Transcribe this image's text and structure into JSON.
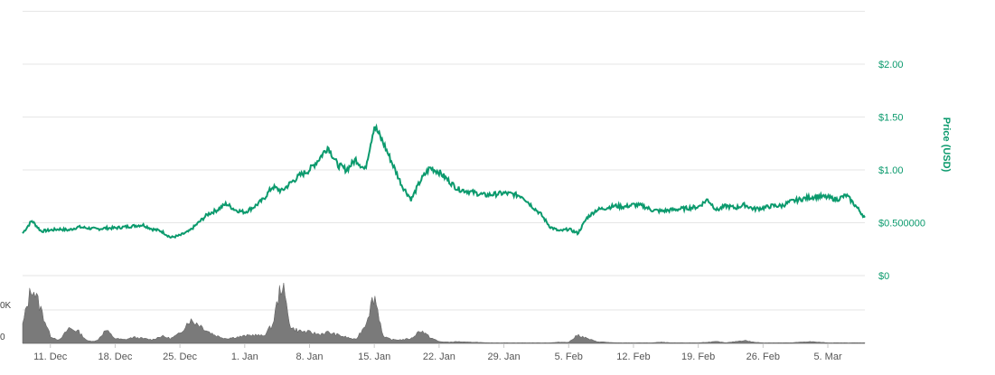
{
  "chart_data": {
    "type": "line",
    "title": "",
    "y_axis": {
      "label": "Price (USD)",
      "range": [
        0,
        2.5
      ],
      "ticks": [
        0,
        0.5,
        1.0,
        1.5,
        2.0
      ],
      "tick_labels": [
        "$0",
        "$0.500000",
        "$1.00",
        "$1.50",
        "$2.00"
      ],
      "position": "right"
    },
    "x_axis": {
      "range": [
        "2017-12-08",
        "2018-03-09"
      ],
      "ticks": [
        "2017-12-11",
        "2017-12-18",
        "2017-12-25",
        "2018-01-01",
        "2018-01-08",
        "2018-01-15",
        "2018-01-22",
        "2018-01-29",
        "2018-02-05",
        "2018-02-12",
        "2018-02-19",
        "2018-02-26",
        "2018-03-05"
      ],
      "tick_labels": [
        "11. Dec",
        "18. Dec",
        "25. Dec",
        "1. Jan",
        "8. Jan",
        "15. Jan",
        "22. Jan",
        "29. Jan",
        "5. Feb",
        "12. Feb",
        "19. Feb",
        "26. Feb",
        "5. Mar"
      ]
    },
    "volume_axis": {
      "tick_labels": [
        "0",
        "0K"
      ]
    },
    "grid": true,
    "series": [
      {
        "kind": "price",
        "color": "#0b9a6d",
        "points": [
          [
            "2017-12-08",
            0.4
          ],
          [
            "2017-12-09",
            0.52
          ],
          [
            "2017-12-10",
            0.42
          ],
          [
            "2017-12-11",
            0.43
          ],
          [
            "2017-12-12",
            0.44
          ],
          [
            "2017-12-13",
            0.43
          ],
          [
            "2017-12-14",
            0.46
          ],
          [
            "2017-12-15",
            0.45
          ],
          [
            "2017-12-16",
            0.44
          ],
          [
            "2017-12-17",
            0.45
          ],
          [
            "2017-12-18",
            0.45
          ],
          [
            "2017-12-19",
            0.46
          ],
          [
            "2017-12-20",
            0.47
          ],
          [
            "2017-12-21",
            0.48
          ],
          [
            "2017-12-22",
            0.44
          ],
          [
            "2017-12-23",
            0.42
          ],
          [
            "2017-12-24",
            0.36
          ],
          [
            "2017-12-25",
            0.38
          ],
          [
            "2017-12-26",
            0.42
          ],
          [
            "2017-12-27",
            0.5
          ],
          [
            "2017-12-28",
            0.58
          ],
          [
            "2017-12-29",
            0.62
          ],
          [
            "2017-12-30",
            0.68
          ],
          [
            "2017-12-31",
            0.62
          ],
          [
            "2018-01-01",
            0.6
          ],
          [
            "2018-01-02",
            0.65
          ],
          [
            "2018-01-03",
            0.72
          ],
          [
            "2018-01-04",
            0.84
          ],
          [
            "2018-01-05",
            0.8
          ],
          [
            "2018-01-06",
            0.88
          ],
          [
            "2018-01-07",
            0.95
          ],
          [
            "2018-01-08",
            1.0
          ],
          [
            "2018-01-09",
            1.1
          ],
          [
            "2018-01-10",
            1.22
          ],
          [
            "2018-01-11",
            1.05
          ],
          [
            "2018-01-12",
            1.0
          ],
          [
            "2018-01-13",
            1.1
          ],
          [
            "2018-01-14",
            1.0
          ],
          [
            "2018-01-15",
            1.42
          ],
          [
            "2018-01-16",
            1.25
          ],
          [
            "2018-01-17",
            1.05
          ],
          [
            "2018-01-18",
            0.85
          ],
          [
            "2018-01-19",
            0.72
          ],
          [
            "2018-01-20",
            0.9
          ],
          [
            "2018-01-21",
            1.02
          ],
          [
            "2018-01-22",
            0.98
          ],
          [
            "2018-01-23",
            0.9
          ],
          [
            "2018-01-24",
            0.82
          ],
          [
            "2018-01-25",
            0.8
          ],
          [
            "2018-01-26",
            0.78
          ],
          [
            "2018-01-27",
            0.76
          ],
          [
            "2018-01-28",
            0.77
          ],
          [
            "2018-01-29",
            0.78
          ],
          [
            "2018-01-30",
            0.77
          ],
          [
            "2018-01-31",
            0.75
          ],
          [
            "2018-02-01",
            0.66
          ],
          [
            "2018-02-02",
            0.58
          ],
          [
            "2018-02-03",
            0.46
          ],
          [
            "2018-02-04",
            0.42
          ],
          [
            "2018-02-05",
            0.44
          ],
          [
            "2018-02-06",
            0.4
          ],
          [
            "2018-02-07",
            0.55
          ],
          [
            "2018-02-08",
            0.62
          ],
          [
            "2018-02-09",
            0.64
          ],
          [
            "2018-02-10",
            0.66
          ],
          [
            "2018-02-11",
            0.65
          ],
          [
            "2018-02-12",
            0.67
          ],
          [
            "2018-02-13",
            0.66
          ],
          [
            "2018-02-14",
            0.62
          ],
          [
            "2018-02-15",
            0.61
          ],
          [
            "2018-02-16",
            0.62
          ],
          [
            "2018-02-17",
            0.63
          ],
          [
            "2018-02-18",
            0.64
          ],
          [
            "2018-02-19",
            0.65
          ],
          [
            "2018-02-20",
            0.72
          ],
          [
            "2018-02-21",
            0.62
          ],
          [
            "2018-02-22",
            0.66
          ],
          [
            "2018-02-23",
            0.64
          ],
          [
            "2018-02-24",
            0.67
          ],
          [
            "2018-02-25",
            0.63
          ],
          [
            "2018-02-26",
            0.64
          ],
          [
            "2018-02-27",
            0.66
          ],
          [
            "2018-02-28",
            0.66
          ],
          [
            "2018-03-01",
            0.7
          ],
          [
            "2018-03-02",
            0.72
          ],
          [
            "2018-03-03",
            0.74
          ],
          [
            "2018-03-04",
            0.75
          ],
          [
            "2018-03-05",
            0.74
          ],
          [
            "2018-03-06",
            0.72
          ],
          [
            "2018-03-07",
            0.76
          ],
          [
            "2018-03-08",
            0.66
          ],
          [
            "2018-03-09",
            0.55
          ]
        ]
      },
      {
        "kind": "volume",
        "color": "#7a7a7a",
        "points": [
          [
            "2017-12-08",
            0.3
          ],
          [
            "2017-12-09",
            0.95
          ],
          [
            "2017-12-10",
            0.55
          ],
          [
            "2017-12-11",
            0.12
          ],
          [
            "2017-12-12",
            0.05
          ],
          [
            "2017-12-13",
            0.25
          ],
          [
            "2017-12-14",
            0.2
          ],
          [
            "2017-12-15",
            0.04
          ],
          [
            "2017-12-16",
            0.04
          ],
          [
            "2017-12-17",
            0.22
          ],
          [
            "2017-12-18",
            0.08
          ],
          [
            "2017-12-19",
            0.06
          ],
          [
            "2017-12-20",
            0.1
          ],
          [
            "2017-12-21",
            0.08
          ],
          [
            "2017-12-22",
            0.06
          ],
          [
            "2017-12-23",
            0.12
          ],
          [
            "2017-12-24",
            0.08
          ],
          [
            "2017-12-25",
            0.16
          ],
          [
            "2017-12-26",
            0.38
          ],
          [
            "2017-12-27",
            0.32
          ],
          [
            "2017-12-28",
            0.2
          ],
          [
            "2017-12-29",
            0.12
          ],
          [
            "2017-12-30",
            0.08
          ],
          [
            "2017-12-31",
            0.1
          ],
          [
            "2018-01-01",
            0.12
          ],
          [
            "2018-01-02",
            0.14
          ],
          [
            "2018-01-03",
            0.12
          ],
          [
            "2018-01-04",
            0.3
          ],
          [
            "2018-01-05",
            1.0
          ],
          [
            "2018-01-06",
            0.25
          ],
          [
            "2018-01-07",
            0.2
          ],
          [
            "2018-01-08",
            0.18
          ],
          [
            "2018-01-09",
            0.15
          ],
          [
            "2018-01-10",
            0.18
          ],
          [
            "2018-01-11",
            0.14
          ],
          [
            "2018-01-12",
            0.1
          ],
          [
            "2018-01-13",
            0.06
          ],
          [
            "2018-01-14",
            0.3
          ],
          [
            "2018-01-15",
            0.8
          ],
          [
            "2018-01-16",
            0.1
          ],
          [
            "2018-01-17",
            0.06
          ],
          [
            "2018-01-18",
            0.06
          ],
          [
            "2018-01-19",
            0.08
          ],
          [
            "2018-01-20",
            0.22
          ],
          [
            "2018-01-21",
            0.1
          ],
          [
            "2018-01-22",
            0.03
          ],
          [
            "2018-01-23",
            0.02
          ],
          [
            "2018-01-24",
            0.03
          ],
          [
            "2018-01-25",
            0.02
          ],
          [
            "2018-01-26",
            0.02
          ],
          [
            "2018-01-27",
            0.01
          ],
          [
            "2018-01-28",
            0.01
          ],
          [
            "2018-01-29",
            0.01
          ],
          [
            "2018-01-30",
            0.01
          ],
          [
            "2018-01-31",
            0.01
          ],
          [
            "2018-02-01",
            0.01
          ],
          [
            "2018-02-02",
            0.01
          ],
          [
            "2018-02-03",
            0.01
          ],
          [
            "2018-02-04",
            0.02
          ],
          [
            "2018-02-05",
            0.02
          ],
          [
            "2018-02-06",
            0.14
          ],
          [
            "2018-02-07",
            0.08
          ],
          [
            "2018-02-08",
            0.03
          ],
          [
            "2018-02-09",
            0.02
          ],
          [
            "2018-02-10",
            0.01
          ],
          [
            "2018-02-11",
            0.01
          ],
          [
            "2018-02-12",
            0.01
          ],
          [
            "2018-02-13",
            0.01
          ],
          [
            "2018-02-14",
            0.01
          ],
          [
            "2018-02-15",
            0.02
          ],
          [
            "2018-02-16",
            0.01
          ],
          [
            "2018-02-17",
            0.01
          ],
          [
            "2018-02-18",
            0.01
          ],
          [
            "2018-02-19",
            0.01
          ],
          [
            "2018-02-20",
            0.02
          ],
          [
            "2018-02-21",
            0.03
          ],
          [
            "2018-02-22",
            0.01
          ],
          [
            "2018-02-23",
            0.03
          ],
          [
            "2018-02-24",
            0.05
          ],
          [
            "2018-02-25",
            0.02
          ],
          [
            "2018-02-26",
            0.01
          ],
          [
            "2018-02-27",
            0.01
          ],
          [
            "2018-02-28",
            0.01
          ],
          [
            "2018-03-01",
            0.01
          ],
          [
            "2018-03-02",
            0.02
          ],
          [
            "2018-03-03",
            0.03
          ],
          [
            "2018-03-04",
            0.02
          ],
          [
            "2018-03-05",
            0.01
          ],
          [
            "2018-03-06",
            0.01
          ],
          [
            "2018-03-07",
            0.01
          ],
          [
            "2018-03-08",
            0.01
          ],
          [
            "2018-03-09",
            0.01
          ]
        ]
      }
    ]
  }
}
